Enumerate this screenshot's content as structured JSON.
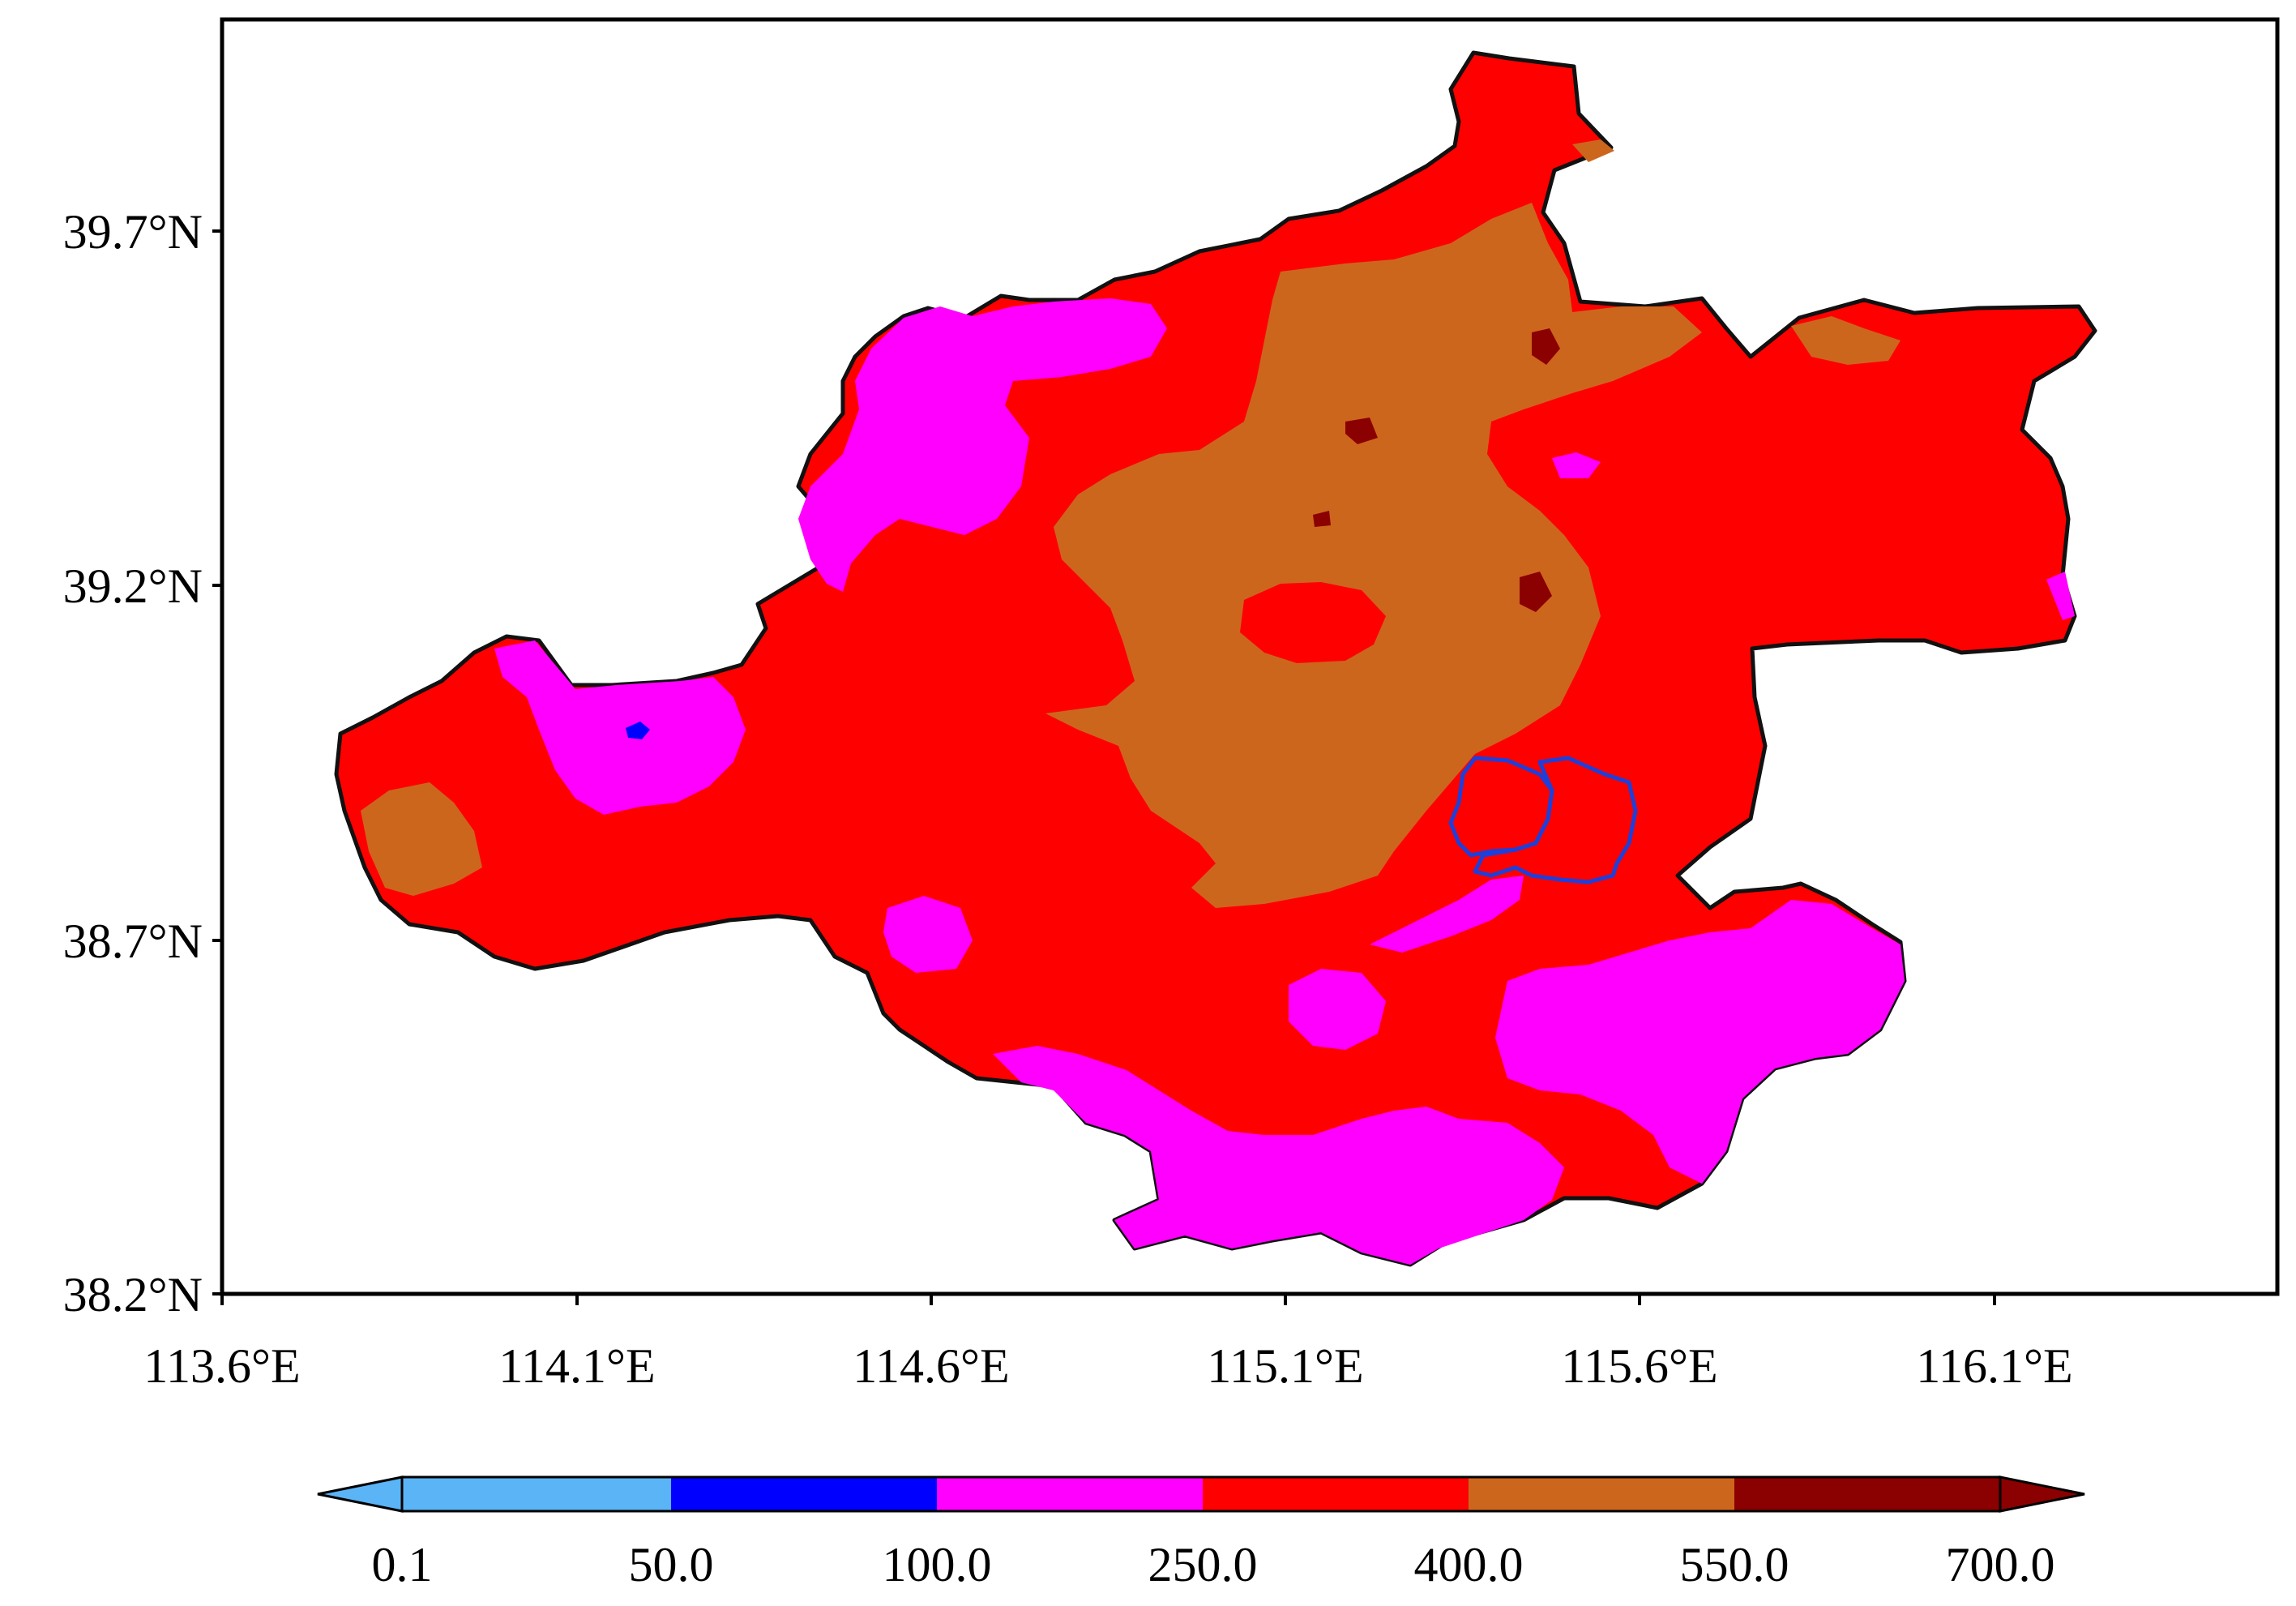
{
  "map": {
    "lat_ticks": [
      "39.7°N",
      "39.2°N",
      "38.7°N",
      "38.2°N"
    ],
    "lon_ticks": [
      "113.6°E",
      "114.1°E",
      "114.6°E",
      "115.1°E",
      "115.6°E",
      "116.1°E"
    ],
    "lat_range": [
      38.2,
      40.0
    ],
    "lon_range": [
      113.6,
      116.5
    ]
  },
  "colorbar": {
    "labels": [
      "0.1",
      "50.0",
      "100.0",
      "250.0",
      "400.0",
      "550.0",
      "700.0"
    ],
    "colors": [
      "#5ab4f5",
      "#0000ff",
      "#ff00ff",
      "#ff0000",
      "#cd661d",
      "#8b0000"
    ],
    "extend": "both"
  },
  "colors": {
    "frame": "#000000",
    "boundary": "#1a1a1a",
    "highlight_region": "#1f3fd8"
  }
}
